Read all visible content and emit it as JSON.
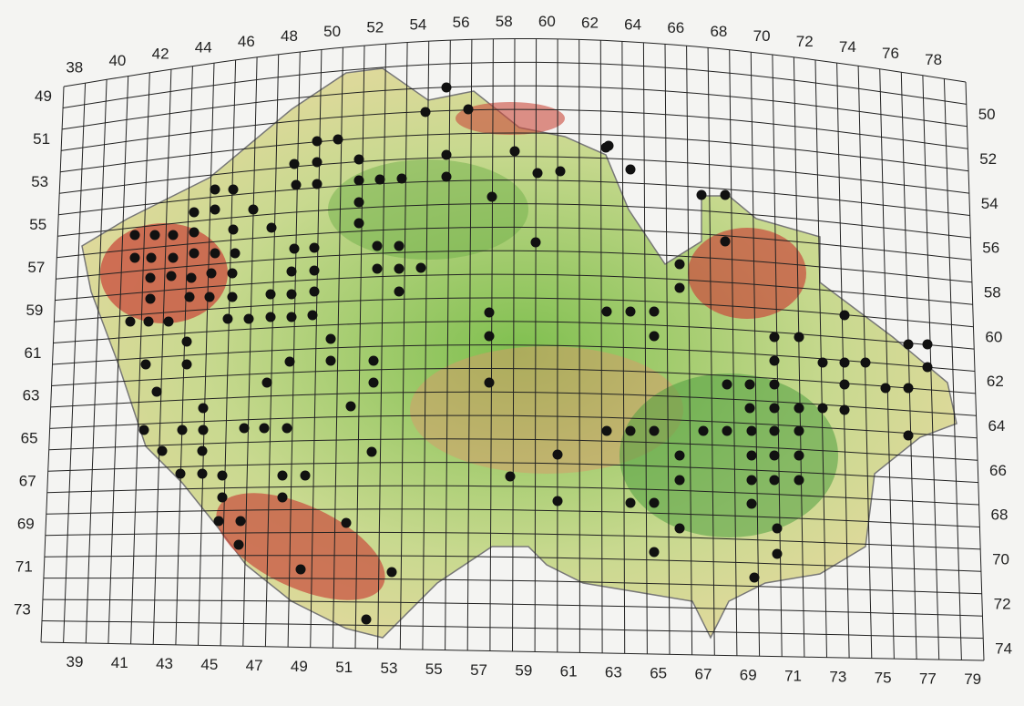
{
  "top_labels": [
    "38",
    "40",
    "42",
    "44",
    "46",
    "48",
    "50",
    "52",
    "54",
    "56",
    "58",
    "60",
    "62",
    "64",
    "66",
    "68",
    "70",
    "72",
    "74",
    "76",
    "78"
  ],
  "bottom_labels": [
    "39",
    "41",
    "43",
    "45",
    "47",
    "49",
    "51",
    "53",
    "55",
    "57",
    "59",
    "61",
    "63",
    "65",
    "67",
    "69",
    "71",
    "73",
    "75",
    "77",
    "79"
  ],
  "left_labels": [
    "49",
    "51",
    "53",
    "55",
    "57",
    "59",
    "61",
    "63",
    "65",
    "67",
    "69",
    "71",
    "73"
  ],
  "right_labels": [
    "50",
    "52",
    "54",
    "56",
    "58",
    "60",
    "62",
    "64",
    "66",
    "68",
    "70",
    "72",
    "74"
  ]
}
